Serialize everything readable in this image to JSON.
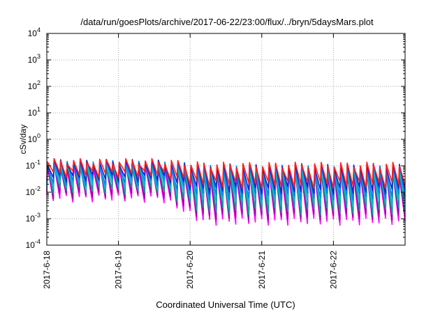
{
  "chart_data": {
    "type": "line",
    "title": "/data/run/goesPlots/archive/2017-06-22/23:00/flux/../bryn/5daysMars.plot",
    "xlabel": "Coordinated Universal Time (UTC)",
    "ylabel": "cSv/day",
    "y_scale": "log",
    "ylim": [
      0.0001,
      10000
    ],
    "y_ticks": [
      {
        "exp": "-4",
        "value": 0.0001
      },
      {
        "exp": "-3",
        "value": 0.001
      },
      {
        "exp": "-2",
        "value": 0.01
      },
      {
        "exp": "-1",
        "value": 0.1
      },
      {
        "exp": "0",
        "value": 1
      },
      {
        "exp": "1",
        "value": 10
      },
      {
        "exp": "2",
        "value": 100
      },
      {
        "exp": "3",
        "value": 1000
      },
      {
        "exp": "4",
        "value": 10000
      }
    ],
    "x_ticks": [
      "2017-6-18",
      "2017-6-19",
      "2017-6-20",
      "2017-6-21",
      "2017-6-22"
    ],
    "xlim": [
      "2017-06-18",
      "2017-06-23"
    ],
    "grid": true,
    "cycles_per_day": 11,
    "series": [
      {
        "color": "#ff00ff",
        "peak_early": 0.09,
        "trough_early": 0.006,
        "peak_late": 0.05,
        "trough_late": 0.0008
      },
      {
        "color": "#a000a0",
        "peak_early": 0.1,
        "trough_early": 0.008,
        "peak_late": 0.06,
        "trough_late": 0.0012
      },
      {
        "color": "#00a0a0",
        "peak_early": 0.11,
        "trough_early": 0.012,
        "peak_late": 0.07,
        "trough_late": 0.002
      },
      {
        "color": "#00c0c0",
        "peak_early": 0.12,
        "trough_early": 0.018,
        "peak_late": 0.08,
        "trough_late": 0.004
      },
      {
        "color": "#0080ff",
        "peak_early": 0.13,
        "trough_early": 0.025,
        "peak_late": 0.09,
        "trough_late": 0.007
      },
      {
        "color": "#2020c0",
        "peak_early": 0.14,
        "trough_early": 0.035,
        "peak_late": 0.1,
        "trough_late": 0.012
      },
      {
        "color": "#ff2020",
        "peak_early": 0.15,
        "trough_early": 0.05,
        "peak_late": 0.11,
        "trough_late": 0.02
      }
    ]
  }
}
